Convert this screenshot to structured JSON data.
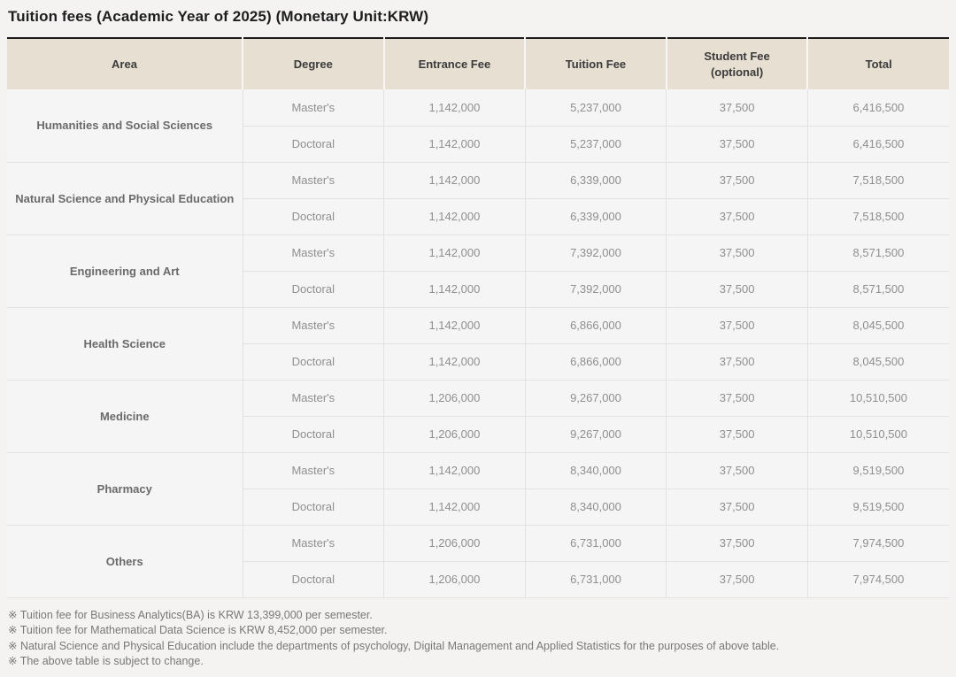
{
  "title": "Tuition fees (Academic Year of 2025) (Monetary Unit:KRW)",
  "colors": {
    "page_background": "#f4f3f1",
    "header_background": "#e6dfd2",
    "cell_background": "#f5f5f5",
    "table_top_border": "#1c1c1c",
    "grid_line": "#e2e2e1"
  },
  "table": {
    "headers": [
      {
        "label": "Area"
      },
      {
        "label": "Degree"
      },
      {
        "label": "Entrance Fee"
      },
      {
        "label": "Tuition Fee"
      },
      {
        "label": "Student Fee",
        "sublabel": "(optional)"
      },
      {
        "label": "Total"
      }
    ],
    "groups": [
      {
        "area": "Humanities and Social Sciences",
        "rows": [
          {
            "degree": "Master's",
            "entrance": "1,142,000",
            "tuition": "5,237,000",
            "student": "37,500",
            "total": "6,416,500"
          },
          {
            "degree": "Doctoral",
            "entrance": "1,142,000",
            "tuition": "5,237,000",
            "student": "37,500",
            "total": "6,416,500"
          }
        ]
      },
      {
        "area": "Natural Science and Physical Education",
        "rows": [
          {
            "degree": "Master's",
            "entrance": "1,142,000",
            "tuition": "6,339,000",
            "student": "37,500",
            "total": "7,518,500"
          },
          {
            "degree": "Doctoral",
            "entrance": "1,142,000",
            "tuition": "6,339,000",
            "student": "37,500",
            "total": "7,518,500"
          }
        ]
      },
      {
        "area": "Engineering and Art",
        "rows": [
          {
            "degree": "Master's",
            "entrance": "1,142,000",
            "tuition": "7,392,000",
            "student": "37,500",
            "total": "8,571,500"
          },
          {
            "degree": "Doctoral",
            "entrance": "1,142,000",
            "tuition": "7,392,000",
            "student": "37,500",
            "total": "8,571,500"
          }
        ]
      },
      {
        "area": "Health Science",
        "rows": [
          {
            "degree": "Master's",
            "entrance": "1,142,000",
            "tuition": "6,866,000",
            "student": "37,500",
            "total": "8,045,500"
          },
          {
            "degree": "Doctoral",
            "entrance": "1,142,000",
            "tuition": "6,866,000",
            "student": "37,500",
            "total": "8,045,500"
          }
        ]
      },
      {
        "area": "Medicine",
        "rows": [
          {
            "degree": "Master's",
            "entrance": "1,206,000",
            "tuition": "9,267,000",
            "student": "37,500",
            "total": "10,510,500"
          },
          {
            "degree": "Doctoral",
            "entrance": "1,206,000",
            "tuition": "9,267,000",
            "student": "37,500",
            "total": "10,510,500"
          }
        ]
      },
      {
        "area": "Pharmacy",
        "rows": [
          {
            "degree": "Master's",
            "entrance": "1,142,000",
            "tuition": "8,340,000",
            "student": "37,500",
            "total": "9,519,500"
          },
          {
            "degree": "Doctoral",
            "entrance": "1,142,000",
            "tuition": "8,340,000",
            "student": "37,500",
            "total": "9,519,500"
          }
        ]
      },
      {
        "area": "Others",
        "rows": [
          {
            "degree": "Master's",
            "entrance": "1,206,000",
            "tuition": "6,731,000",
            "student": "37,500",
            "total": "7,974,500"
          },
          {
            "degree": "Doctoral",
            "entrance": "1,206,000",
            "tuition": "6,731,000",
            "student": "37,500",
            "total": "7,974,500"
          }
        ]
      }
    ]
  },
  "footnotes": [
    "※ Tuition fee for Business Analytics(BA) is KRW 13,399,000 per semester.",
    "※ Tuition fee for Mathematical Data Science is KRW 8,452,000 per semester.",
    "※ Natural Science and Physical Education include the departments of psychology, Digital Management and Applied Statistics for the purposes of above table.",
    "※ The above table is subject to change."
  ]
}
